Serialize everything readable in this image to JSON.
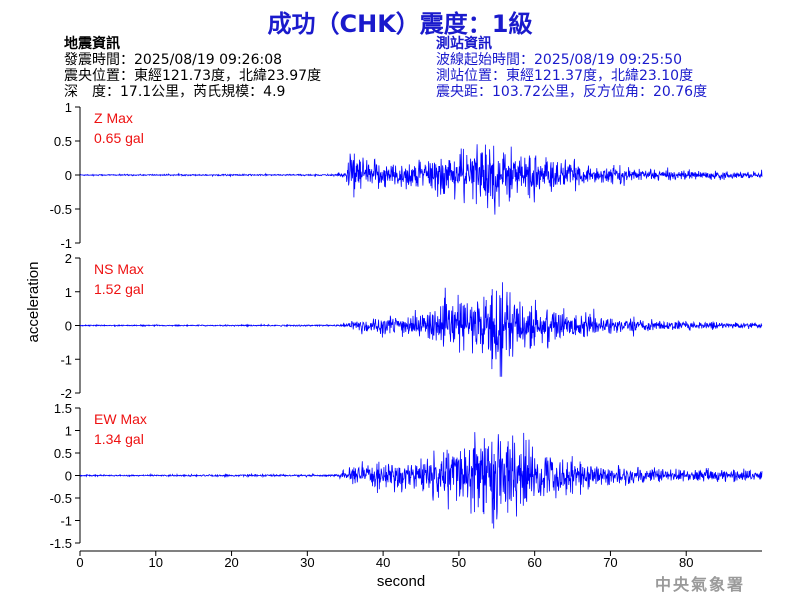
{
  "title": "成功（CHK）震度：1級",
  "quake_info": {
    "heading": "地震資訊",
    "time": "發震時間：2025/08/19 09:26:08",
    "epicenter": "震央位置：東經121.73度，北緯23.97度",
    "depth_mag": "深　度：17.1公里，芮氏規模：4.9"
  },
  "station_info": {
    "heading": "測站資訊",
    "wave_start": "波線起始時間：2025/08/19 09:25:50",
    "location": "測站位置：東經121.37度，北緯23.10度",
    "distance": "震央距：103.72公里，反方位角：20.76度"
  },
  "watermark": "中央氣象署",
  "colors": {
    "title": "#1a1acc",
    "trace": "#0000ff",
    "max_label": "#ee1111"
  },
  "chart_data": [
    {
      "type": "line",
      "component": "Z",
      "max_label": "Z Max",
      "max_value": "0.65 gal",
      "ylim": [
        -1,
        1
      ],
      "yticks": [
        -1,
        -0.5,
        0,
        0.5,
        1
      ],
      "xlim": [
        0,
        90
      ],
      "envelope": [
        [
          0,
          0.012
        ],
        [
          33,
          0.015
        ],
        [
          35,
          0.05
        ],
        [
          36,
          0.45
        ],
        [
          37,
          0.3
        ],
        [
          40,
          0.25
        ],
        [
          45,
          0.3
        ],
        [
          50,
          0.45
        ],
        [
          53,
          0.6
        ],
        [
          55,
          0.55
        ],
        [
          58,
          0.45
        ],
        [
          62,
          0.3
        ],
        [
          67,
          0.18
        ],
        [
          75,
          0.1
        ],
        [
          85,
          0.07
        ],
        [
          90,
          0.06
        ]
      ]
    },
    {
      "type": "line",
      "component": "NS",
      "max_label": "NS Max",
      "max_value": "1.52 gal",
      "ylim": [
        -2,
        2
      ],
      "yticks": [
        -2,
        -1,
        0,
        1,
        2
      ],
      "xlim": [
        0,
        90
      ],
      "envelope": [
        [
          0,
          0.02
        ],
        [
          34,
          0.03
        ],
        [
          35,
          0.1
        ],
        [
          37,
          0.3
        ],
        [
          40,
          0.35
        ],
        [
          45,
          0.5
        ],
        [
          50,
          0.9
        ],
        [
          53,
          1.3
        ],
        [
          55,
          1.45
        ],
        [
          57,
          1.2
        ],
        [
          60,
          0.9
        ],
        [
          65,
          0.5
        ],
        [
          70,
          0.3
        ],
        [
          80,
          0.15
        ],
        [
          90,
          0.1
        ]
      ]
    },
    {
      "type": "line",
      "component": "EW",
      "max_label": "EW Max",
      "max_value": "1.34 gal",
      "ylim": [
        -1.5,
        1.5
      ],
      "yticks": [
        -1.5,
        -1,
        -0.5,
        0,
        0.5,
        1,
        1.5
      ],
      "xlim": [
        0,
        90
      ],
      "envelope": [
        [
          0,
          0.02
        ],
        [
          34,
          0.03
        ],
        [
          35,
          0.15
        ],
        [
          37,
          0.3
        ],
        [
          40,
          0.35
        ],
        [
          45,
          0.5
        ],
        [
          50,
          0.9
        ],
        [
          53,
          1.25
        ],
        [
          55,
          1.3
        ],
        [
          57,
          1.1
        ],
        [
          60,
          0.8
        ],
        [
          65,
          0.45
        ],
        [
          70,
          0.3
        ],
        [
          80,
          0.18
        ],
        [
          90,
          0.15
        ]
      ]
    }
  ],
  "xaxis": {
    "label": "second",
    "ticks": [
      0,
      10,
      20,
      30,
      40,
      50,
      60,
      70,
      80
    ]
  },
  "yaxis_label": "acceleration"
}
